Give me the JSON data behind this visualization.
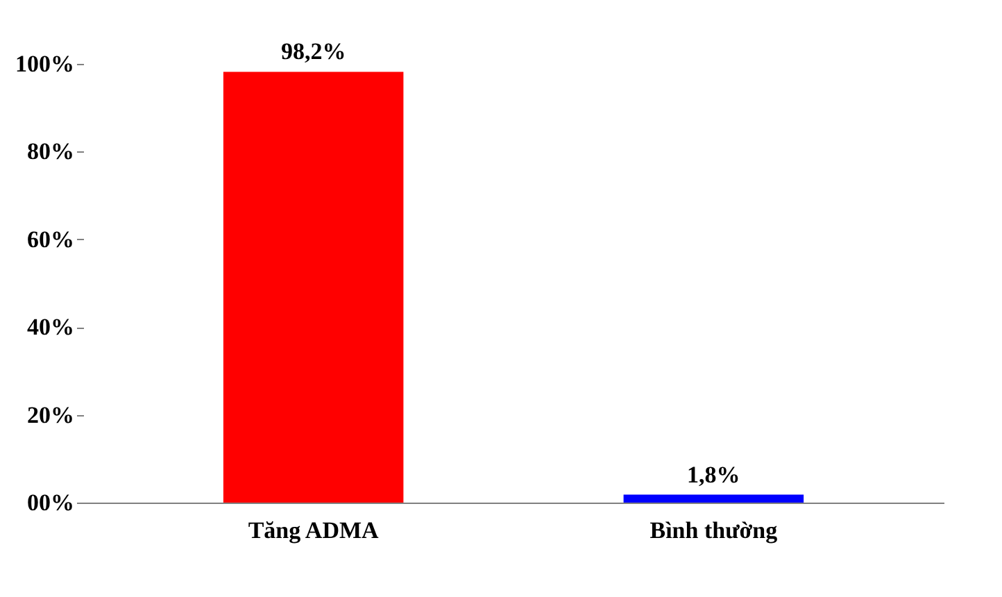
{
  "chart_data": {
    "type": "bar",
    "categories": [
      "Tăng ADMA",
      "Bình thường"
    ],
    "values": [
      98.2,
      1.8
    ],
    "colors": [
      "#ff0000",
      "#0000ff"
    ],
    "value_labels": [
      "98,2%",
      "1,8%"
    ],
    "ylim": [
      0,
      100
    ],
    "yticks": [
      {
        "value": 0,
        "label": "00%"
      },
      {
        "value": 20,
        "label": "20%"
      },
      {
        "value": 40,
        "label": "40%"
      },
      {
        "value": 60,
        "label": "60%"
      },
      {
        "value": 80,
        "label": "80%"
      },
      {
        "value": 100,
        "label": "100%"
      }
    ],
    "grid": false,
    "legend": false
  }
}
